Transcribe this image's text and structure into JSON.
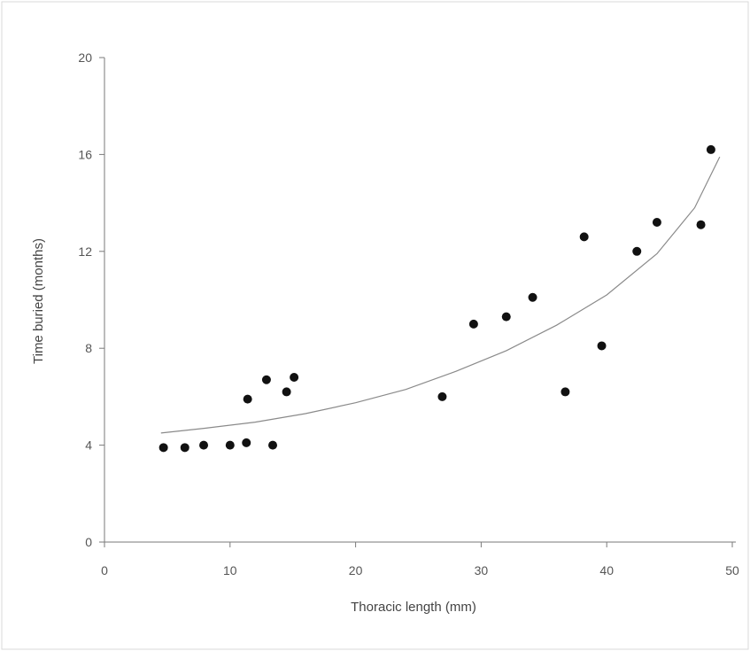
{
  "colors": {
    "axis": "#7a7a7a",
    "points": "#111111",
    "curve": "#8a8a8a",
    "frame": "#d9d9d9"
  },
  "chart_data": {
    "type": "scatter",
    "xlabel": "Thoracic length (mm)",
    "ylabel": "Time buried (months)",
    "xlim": [
      0,
      50
    ],
    "ylim": [
      0,
      20
    ],
    "xticks": [
      0,
      10,
      20,
      30,
      40,
      50
    ],
    "yticks": [
      0,
      4,
      8,
      12,
      16,
      20
    ],
    "grid": false,
    "series": [
      {
        "type": "scatter",
        "points": [
          {
            "x": 4.7,
            "y": 3.9
          },
          {
            "x": 6.4,
            "y": 3.9
          },
          {
            "x": 7.9,
            "y": 4.0
          },
          {
            "x": 10.0,
            "y": 4.0
          },
          {
            "x": 11.3,
            "y": 4.1
          },
          {
            "x": 13.4,
            "y": 4.0
          },
          {
            "x": 11.4,
            "y": 5.9
          },
          {
            "x": 12.9,
            "y": 6.7
          },
          {
            "x": 14.5,
            "y": 6.2
          },
          {
            "x": 15.1,
            "y": 6.8
          },
          {
            "x": 26.9,
            "y": 6.0
          },
          {
            "x": 29.4,
            "y": 9.0
          },
          {
            "x": 32.0,
            "y": 9.3
          },
          {
            "x": 34.1,
            "y": 10.1
          },
          {
            "x": 36.7,
            "y": 6.2
          },
          {
            "x": 38.2,
            "y": 12.6
          },
          {
            "x": 39.6,
            "y": 8.1
          },
          {
            "x": 42.4,
            "y": 12.0
          },
          {
            "x": 44.0,
            "y": 13.2
          },
          {
            "x": 47.5,
            "y": 13.1
          },
          {
            "x": 48.3,
            "y": 16.2
          }
        ]
      },
      {
        "type": "line",
        "points": [
          {
            "x": 4.5,
            "y": 4.5
          },
          {
            "x": 8,
            "y": 4.7
          },
          {
            "x": 12,
            "y": 4.95
          },
          {
            "x": 16,
            "y": 5.3
          },
          {
            "x": 20,
            "y": 5.75
          },
          {
            "x": 24,
            "y": 6.3
          },
          {
            "x": 28,
            "y": 7.05
          },
          {
            "x": 32,
            "y": 7.9
          },
          {
            "x": 36,
            "y": 8.95
          },
          {
            "x": 40,
            "y": 10.2
          },
          {
            "x": 44,
            "y": 11.9
          },
          {
            "x": 47,
            "y": 13.8
          },
          {
            "x": 49,
            "y": 15.9
          }
        ]
      }
    ]
  }
}
